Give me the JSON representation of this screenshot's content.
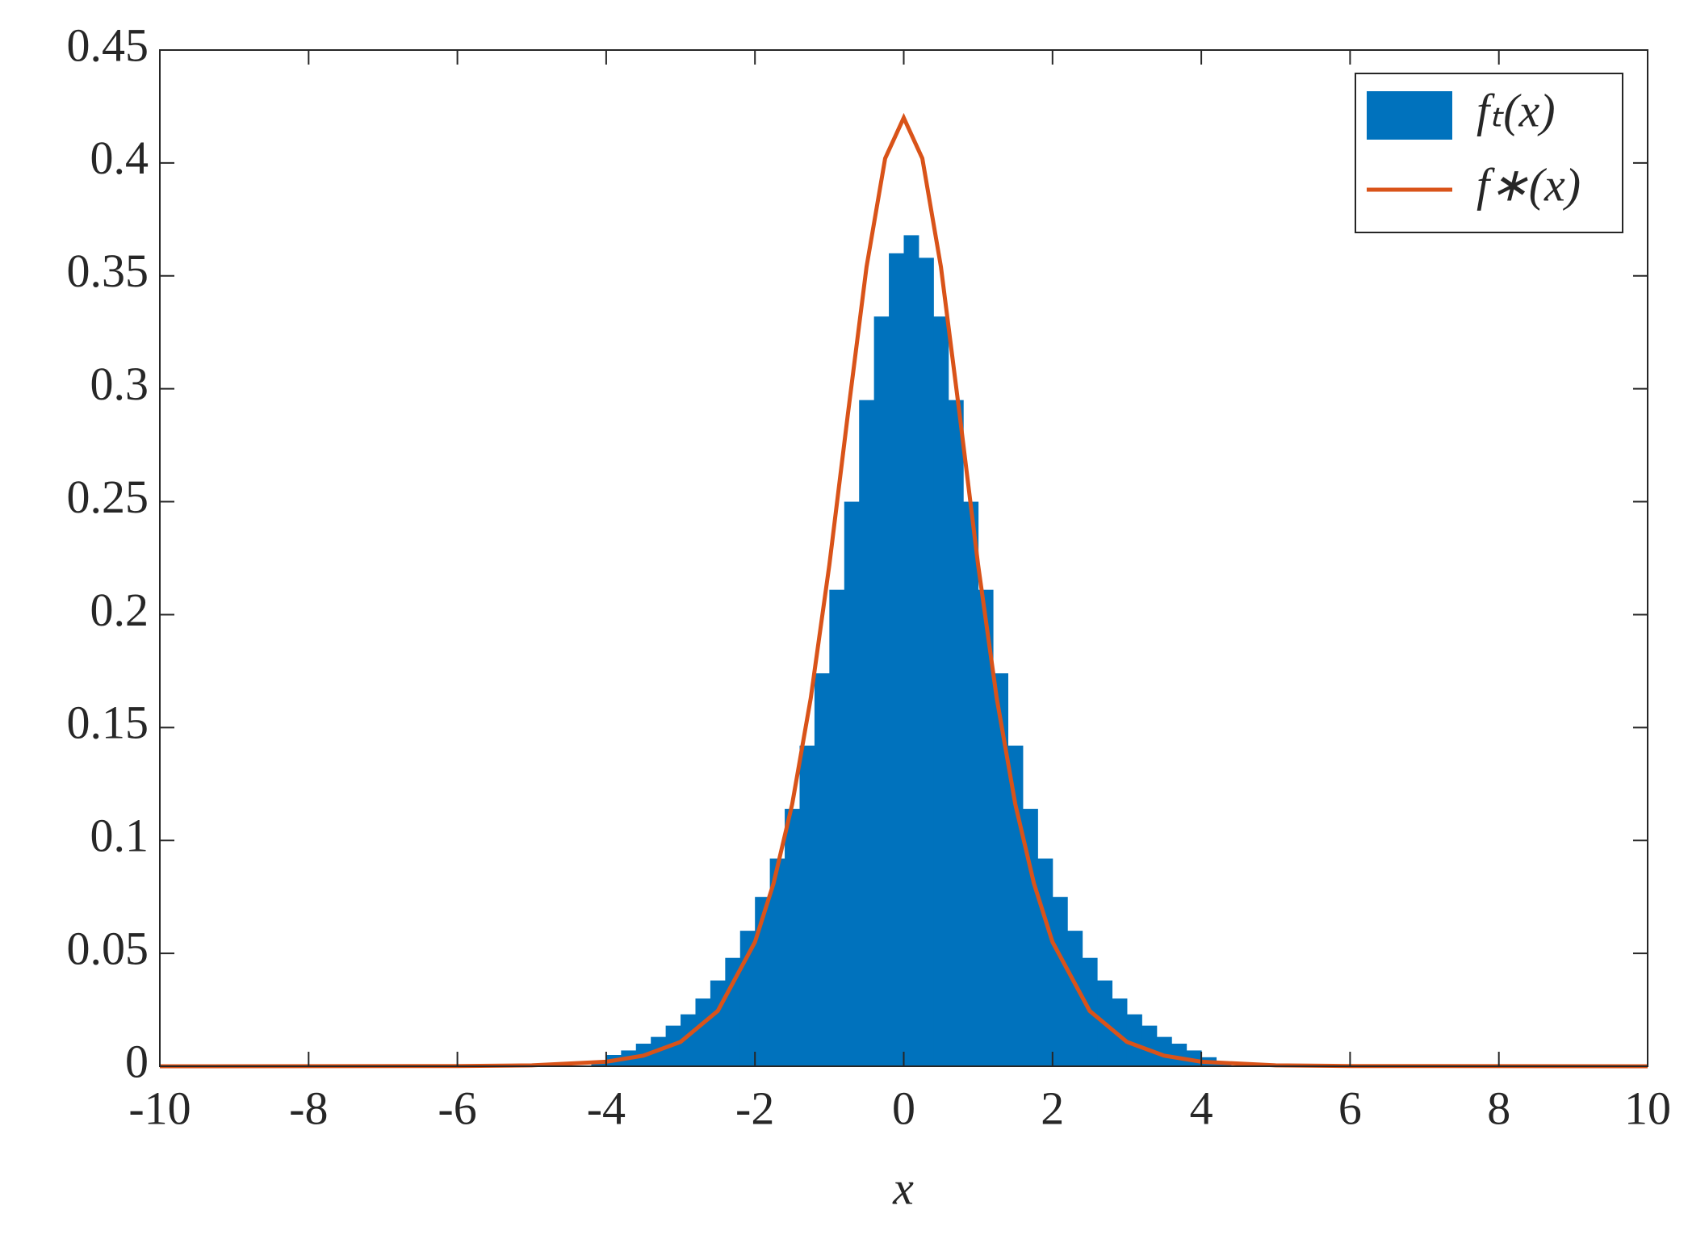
{
  "chart_data": {
    "type": "histogram",
    "xlabel": "x",
    "xlim": [
      -10,
      10
    ],
    "xticks": [
      -10,
      -8,
      -6,
      -4,
      -2,
      0,
      2,
      4,
      6,
      8,
      10
    ],
    "ylim": [
      0,
      0.45
    ],
    "yticks": [
      0,
      0.05,
      0.1,
      0.15,
      0.2,
      0.25,
      0.3,
      0.35,
      0.4,
      0.45
    ],
    "legend": "upper right",
    "bins": [
      -4.2,
      -4.0,
      -3.8,
      -3.6,
      -3.4,
      -3.2,
      -3.0,
      -2.8,
      -2.6,
      -2.4,
      -2.2,
      -2.0,
      -1.8,
      -1.6,
      -1.4,
      -1.2,
      -1.0,
      -0.8,
      -0.6,
      -0.4,
      -0.2,
      0,
      0.2,
      0.4,
      0.6,
      0.8,
      1.0,
      1.2,
      1.4,
      1.6,
      1.8,
      2.0,
      2.2,
      2.4,
      2.6,
      2.8,
      3.0,
      3.2,
      3.4,
      3.6,
      3.8,
      4.0,
      4.2,
      4.4
    ],
    "series": [
      {
        "name": "fₜ(x)",
        "color": "#0072bd",
        "values": [
          0.002,
          0.005,
          0.007,
          0.01,
          0.013,
          0.018,
          0.023,
          0.03,
          0.038,
          0.048,
          0.06,
          0.075,
          0.092,
          0.114,
          0.142,
          0.174,
          0.211,
          0.25,
          0.295,
          0.332,
          0.36,
          0.368,
          0.358,
          0.332,
          0.295,
          0.25,
          0.211,
          0.174,
          0.142,
          0.114,
          0.092,
          0.075,
          0.06,
          0.048,
          0.038,
          0.03,
          0.023,
          0.018,
          0.013,
          0.01,
          0.007,
          0.004,
          0.002
        ]
      },
      {
        "name": "f∗(x)",
        "color": "#d95319",
        "type": "line",
        "x": [
          -10,
          -6,
          -5,
          -4,
          -3.5,
          -3,
          -2.5,
          -2,
          -1.75,
          -1.5,
          -1.25,
          -1,
          -0.75,
          -0.5,
          -0.25,
          0,
          0.25,
          0.5,
          0.75,
          1,
          1.25,
          1.5,
          1.75,
          2,
          2.5,
          3,
          3.5,
          4,
          5,
          6,
          10
        ],
        "values": [
          0,
          0.0001,
          0.0004,
          0.002,
          0.0047,
          0.0108,
          0.0245,
          0.055,
          0.081,
          0.116,
          0.163,
          0.222,
          0.289,
          0.354,
          0.402,
          0.42,
          0.402,
          0.354,
          0.289,
          0.222,
          0.163,
          0.116,
          0.081,
          0.055,
          0.0245,
          0.0108,
          0.0047,
          0.002,
          0.0004,
          0.0001,
          0
        ]
      }
    ]
  }
}
